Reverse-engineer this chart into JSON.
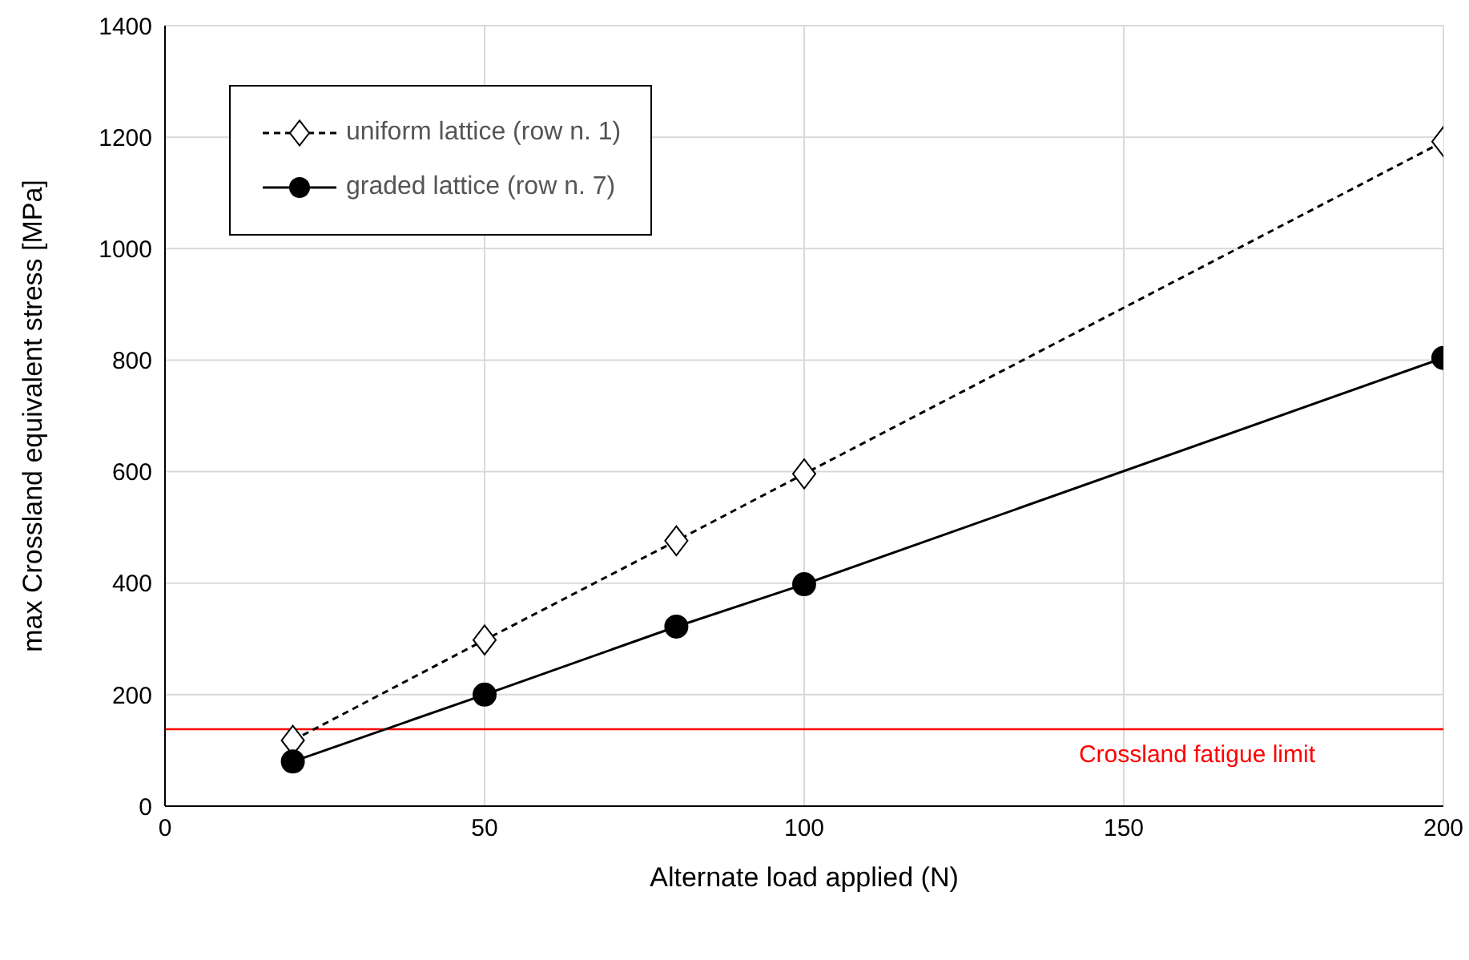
{
  "chart_data": {
    "type": "line",
    "xlabel": "Alternate load applied (N)",
    "ylabel": "max Crossland equivalent stress [MPa]",
    "x": [
      20,
      50,
      80,
      100,
      200
    ],
    "series": [
      {
        "name": "uniform lattice (row n. 1)",
        "color": "#000000",
        "values": [
          118,
          298,
          476,
          596,
          1192
        ],
        "marker": "diamond",
        "line_style": "dashed"
      },
      {
        "name": "graded lattice (row n. 7)",
        "color": "#000000",
        "values": [
          80,
          200,
          322,
          398,
          804
        ],
        "marker": "circle",
        "line_style": "solid"
      }
    ],
    "xlim": [
      0,
      200
    ],
    "xticks": [
      0,
      50,
      100,
      150,
      200
    ],
    "ylim": [
      0,
      1400
    ],
    "yticks": [
      0,
      200,
      400,
      600,
      800,
      1000,
      1200,
      1400
    ],
    "grid": true,
    "legend": "top left",
    "ref_lines": [
      {
        "axis": "y",
        "value": 138,
        "label": "Crossland fatigue limit",
        "color": "#ff0000"
      }
    ]
  }
}
